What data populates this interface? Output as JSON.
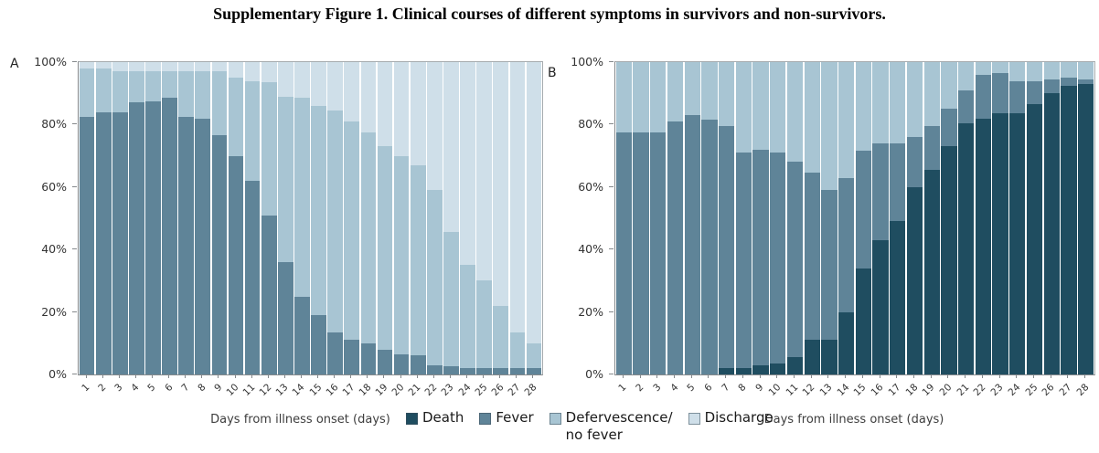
{
  "title": "Supplementary Figure 1. Clinical courses of different symptoms in survivors and non-survivors.",
  "colors": {
    "death": "#1f4d60",
    "fever": "#5f8498",
    "defervescence": "#a8c5d3",
    "discharge": "#cfdfe9",
    "axis_line": "#85898c",
    "plot_border": "#a6abae",
    "tick_text": "#333333"
  },
  "legend": {
    "items": [
      {
        "key": "death",
        "label": "Death",
        "color": "#1f4d60"
      },
      {
        "key": "fever",
        "label": "Fever",
        "color": "#5f8498"
      },
      {
        "key": "defervescence",
        "label": "Defervescence/",
        "label2": "no fever",
        "color": "#a8c5d3"
      },
      {
        "key": "discharge",
        "label": "Discharge",
        "color": "#cfdfe9"
      }
    ]
  },
  "panels": [
    {
      "label": "A",
      "xlabel": "Days from illness onset (days)",
      "y_ticks": [
        "100%",
        "80%",
        "60%",
        "40%",
        "20%",
        "0%"
      ]
    },
    {
      "label": "B",
      "xlabel": "Days from illness onset (days)",
      "y_ticks": [
        "100%",
        "80%",
        "60%",
        "40%",
        "20%",
        "0%"
      ]
    }
  ],
  "chart_data": [
    {
      "type": "bar",
      "stacked": true,
      "panel": "A",
      "title": "",
      "xlabel": "Days from illness onset (days)",
      "ylabel": "",
      "ylim": [
        0,
        100
      ],
      "grid": false,
      "categories": [
        "1",
        "2",
        "3",
        "4",
        "5",
        "6",
        "7",
        "8",
        "9",
        "10",
        "11",
        "12",
        "13",
        "14",
        "15",
        "16",
        "17",
        "18",
        "19",
        "20",
        "21",
        "22",
        "23",
        "24",
        "25",
        "26",
        "27",
        "28"
      ],
      "series": [
        {
          "name": "Death",
          "color_key": "death",
          "values": [
            0,
            0,
            0,
            0,
            0,
            0,
            0,
            0,
            0,
            0,
            0,
            0,
            0,
            0,
            0,
            0,
            0,
            0,
            0,
            0,
            0,
            0,
            0,
            0,
            0,
            0,
            0,
            0
          ]
        },
        {
          "name": "Fever",
          "color_key": "fever",
          "values": [
            82.5,
            84,
            84,
            87,
            87.5,
            88.5,
            82.5,
            82,
            76.5,
            70,
            62,
            51,
            36,
            25,
            19,
            13.5,
            11,
            10,
            8,
            6.5,
            6,
            3,
            2.5,
            2,
            2,
            2,
            2,
            2
          ]
        },
        {
          "name": "Defervescence/no fever",
          "color_key": "defervescence",
          "values": [
            15.5,
            14,
            13,
            10,
            9.5,
            8.5,
            14.5,
            15,
            20.5,
            25,
            32,
            42.5,
            53,
            63.5,
            67,
            71,
            70,
            67.5,
            65,
            63.5,
            61,
            56,
            43,
            33,
            28,
            20,
            11.5,
            8
          ]
        },
        {
          "name": "Discharge",
          "color_key": "discharge",
          "values": [
            2,
            2,
            3,
            3,
            3,
            3,
            3,
            3,
            3,
            5,
            6,
            6.5,
            11,
            11.5,
            14,
            15.5,
            19,
            22.5,
            27,
            30,
            33,
            41,
            54.5,
            65,
            70,
            78,
            86.5,
            90
          ]
        }
      ]
    },
    {
      "type": "bar",
      "stacked": true,
      "panel": "B",
      "title": "",
      "xlabel": "Days from illness onset (days)",
      "ylabel": "",
      "ylim": [
        0,
        100
      ],
      "grid": false,
      "categories": [
        "1",
        "2",
        "3",
        "4",
        "5",
        "6",
        "7",
        "8",
        "9",
        "10",
        "11",
        "12",
        "13",
        "14",
        "15",
        "16",
        "17",
        "18",
        "19",
        "20",
        "21",
        "22",
        "23",
        "24",
        "25",
        "26",
        "27",
        "28"
      ],
      "series": [
        {
          "name": "Death",
          "color_key": "death",
          "values": [
            0,
            0,
            0,
            0,
            0,
            0,
            2,
            2,
            3,
            3.5,
            5.5,
            11,
            11,
            20,
            34,
            43,
            49,
            60,
            65.5,
            73,
            80.5,
            82,
            83.5,
            83.5,
            86.5,
            90,
            92.5,
            93
          ]
        },
        {
          "name": "Fever",
          "color_key": "fever",
          "values": [
            77.5,
            77.5,
            77.5,
            81,
            83,
            81.5,
            77.5,
            69,
            69,
            67.5,
            62.5,
            53.5,
            48,
            43,
            37.5,
            31,
            25,
            16,
            14,
            12,
            10.5,
            14,
            13,
            10.5,
            7.5,
            4.5,
            2.5,
            1.5
          ]
        },
        {
          "name": "Defervescence/no fever",
          "color_key": "defervescence",
          "values": [
            22.5,
            22.5,
            22.5,
            19,
            17,
            18.5,
            20.5,
            29,
            28,
            29,
            32,
            35.5,
            41,
            37,
            28.5,
            26,
            26,
            24,
            20.5,
            15,
            9,
            4,
            3.5,
            6,
            6,
            5.5,
            5,
            5.5
          ]
        },
        {
          "name": "Discharge",
          "color_key": "discharge",
          "values": [
            0,
            0,
            0,
            0,
            0,
            0,
            0,
            0,
            0,
            0,
            0,
            0,
            0,
            0,
            0,
            0,
            0,
            0,
            0,
            0,
            0,
            0,
            0,
            0,
            0,
            0,
            0,
            0
          ]
        }
      ]
    }
  ]
}
